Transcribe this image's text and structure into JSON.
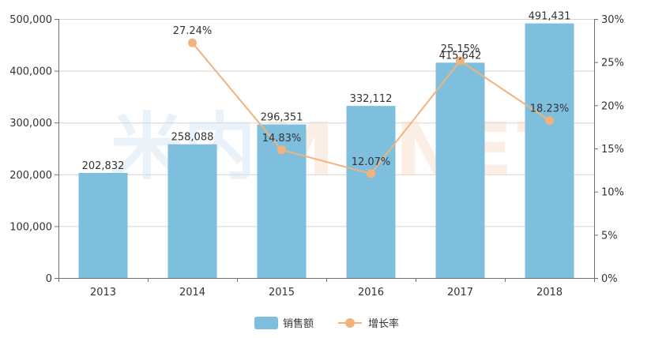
{
  "chart_data": {
    "type": "bar",
    "categories": [
      "2013",
      "2014",
      "2015",
      "2016",
      "2017",
      "2018"
    ],
    "series": [
      {
        "name": "销售额",
        "type": "bar",
        "axis": "left",
        "values": [
          202832,
          258088,
          296351,
          332112,
          415642,
          491431
        ],
        "labels": [
          "202,832",
          "258,088",
          "296,351",
          "332,112",
          "415,642",
          "491,431"
        ],
        "color": "#7fbfde"
      },
      {
        "name": "增长率",
        "type": "line",
        "axis": "right",
        "values": [
          null,
          27.24,
          14.83,
          12.07,
          25.15,
          18.23
        ],
        "labels": [
          "",
          "27.24%",
          "14.83%",
          "12.07%",
          "25.15%",
          "18.23%"
        ],
        "color": "#f2b27d"
      }
    ],
    "left_axis": {
      "ylim": [
        0,
        500000
      ],
      "ticks": [
        0,
        100000,
        200000,
        300000,
        400000,
        500000
      ],
      "tick_labels": [
        "0",
        "100,000",
        "200,000",
        "300,000",
        "400,000",
        "500,000"
      ]
    },
    "right_axis": {
      "ylim": [
        0,
        30
      ],
      "ticks": [
        0,
        5,
        10,
        15,
        20,
        25,
        30
      ],
      "tick_labels": [
        "0%",
        "5%",
        "10%",
        "15%",
        "20%",
        "25%",
        "30%"
      ]
    },
    "grid": true,
    "legend_position": "bottom-center"
  },
  "watermark": {
    "chinese": "米内",
    "latin": "MENET"
  }
}
